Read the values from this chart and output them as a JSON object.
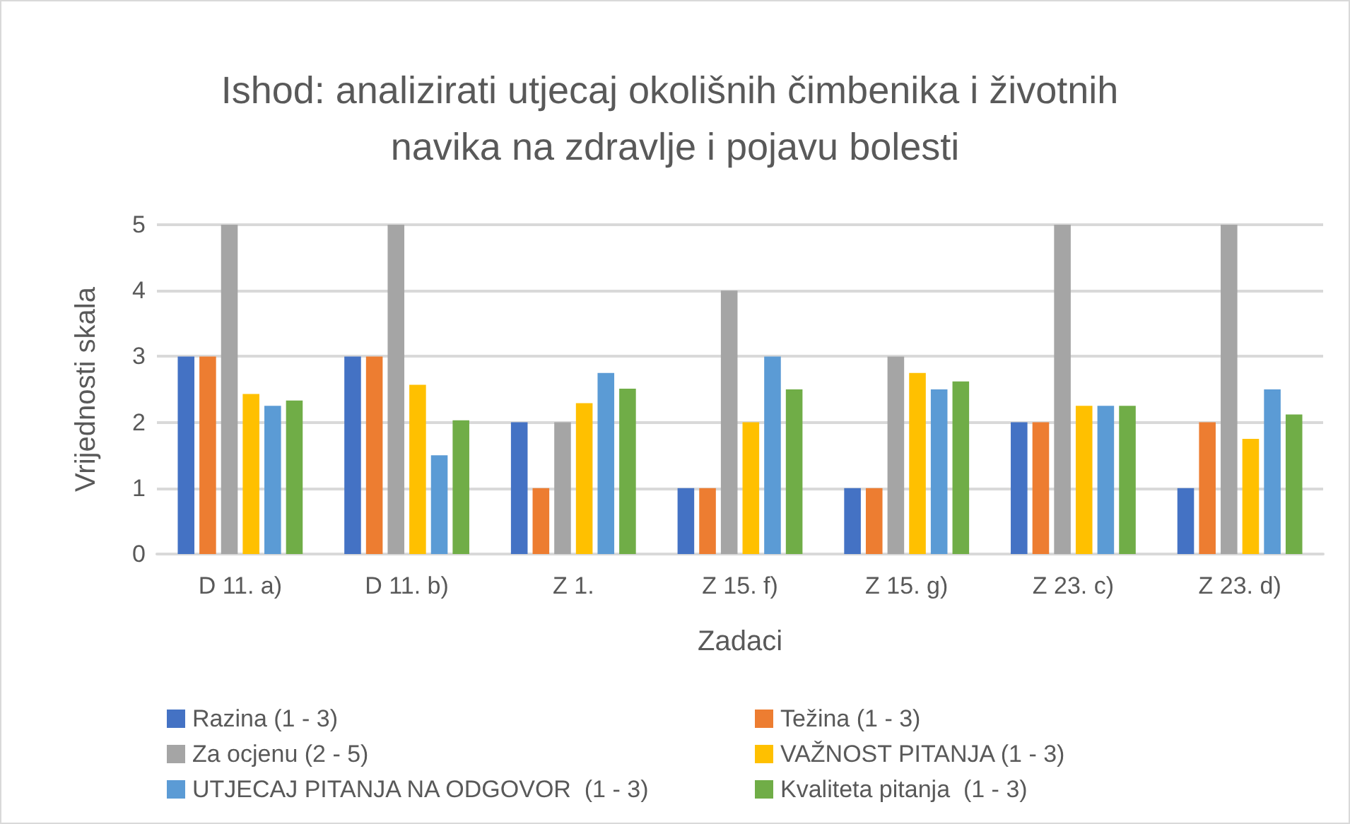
{
  "chart_data": {
    "type": "bar",
    "title": "Ishod: analizirati utjecaj okolišnih čimbenika i životnih navika na zdravlje i pojavu bolesti",
    "xlabel": "Zadaci",
    "ylabel": "Vrijednosti skala",
    "categories": [
      "D 11. a)",
      "D 11. b)",
      "Z 1.",
      "Z 15. f)",
      "Z 15. g)",
      "Z 23. c)",
      "Z 23. d)"
    ],
    "series": [
      {
        "name": "Razina (1 - 3)",
        "color": "#4472c4",
        "values": [
          3,
          3,
          2,
          1,
          1,
          2,
          1
        ]
      },
      {
        "name": "Težina (1 - 3)",
        "color": "#ed7d31",
        "values": [
          3,
          3,
          1,
          1,
          1,
          2,
          2
        ]
      },
      {
        "name": "Za ocjenu (2 - 5)",
        "color": "#a5a5a5",
        "values": [
          5,
          5,
          2,
          4,
          3,
          5,
          5
        ]
      },
      {
        "name": "VAŽNOST PITANJA (1 - 3)",
        "color": "#ffc000",
        "values": [
          2.43,
          2.57,
          2.29,
          2,
          2.75,
          2.25,
          1.75
        ]
      },
      {
        "name": "UTJECAJ PITANJA NA ODGOVOR  (1 - 3)",
        "color": "#5b9bd5",
        "values": [
          2.25,
          1.5,
          2.75,
          3,
          2.5,
          2.25,
          2.5
        ]
      },
      {
        "name": "Kvaliteta pitanja  (1 - 3)",
        "color": "#70ad47",
        "values": [
          2.33,
          2.03,
          2.51,
          2.5,
          2.62,
          2.25,
          2.12
        ]
      }
    ],
    "ylim": [
      0,
      5
    ],
    "yticks": [
      0,
      1,
      2,
      3,
      4,
      5
    ],
    "grid": "y",
    "legend": "bottom"
  }
}
